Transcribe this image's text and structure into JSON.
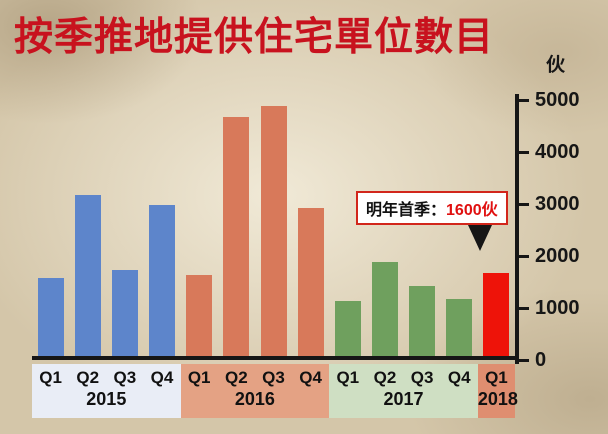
{
  "chart_data": {
    "type": "bar",
    "title": "按季推地提供住宅單位數目",
    "ylabel": "伙",
    "xlabel": "",
    "ylim": [
      0,
      5000
    ],
    "yticks": [
      0,
      1000,
      2000,
      3000,
      4000,
      5000
    ],
    "grid": false,
    "legend": false,
    "groups": [
      {
        "year": "2015",
        "bar_color": "#5d85cb",
        "band_color": "#e9edf6",
        "categories": [
          "Q1",
          "Q2",
          "Q3",
          "Q4"
        ],
        "values": [
          1500,
          3100,
          1650,
          2900
        ]
      },
      {
        "year": "2016",
        "bar_color": "#d8795a",
        "band_color": "#e4a284",
        "categories": [
          "Q1",
          "Q2",
          "Q3",
          "Q4"
        ],
        "values": [
          1550,
          4600,
          4800,
          2850
        ]
      },
      {
        "year": "2017",
        "bar_color": "#6fa05e",
        "band_color": "#cfdfc3",
        "categories": [
          "Q1",
          "Q2",
          "Q3",
          "Q4"
        ],
        "values": [
          1050,
          1800,
          1350,
          1100
        ]
      },
      {
        "year": "2018",
        "bar_color": "#ee1309",
        "band_color": "#df8e70",
        "categories": [
          "Q1"
        ],
        "values": [
          1600
        ]
      }
    ],
    "annotation": {
      "prefix": "明年首季：",
      "value": "1600伙",
      "full": "明年首季：1600伙"
    }
  },
  "colors": {
    "title_red": "#c8121e",
    "axis_black": "#161616",
    "highlight_red": "#ee1309",
    "callout_border": "#d2261b"
  }
}
